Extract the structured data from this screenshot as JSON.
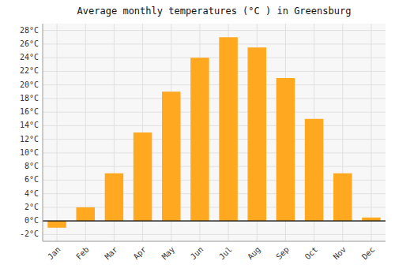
{
  "chart_data": {
    "type": "bar",
    "title": "Average monthly temperatures (°C ) in Greensburg",
    "categories": [
      "Jan",
      "Feb",
      "Mar",
      "Apr",
      "May",
      "Jun",
      "Jul",
      "Aug",
      "Sep",
      "Oct",
      "Nov",
      "Dec"
    ],
    "values": [
      -1,
      2,
      7,
      13,
      19,
      24,
      27,
      25.5,
      21,
      15,
      7,
      0.5
    ],
    "color": "#FFA820",
    "ylim": [
      -3,
      29
    ],
    "yticks": [
      {
        "value": -2,
        "label": "-2°C"
      },
      {
        "value": 0,
        "label": "0°C"
      },
      {
        "value": 2,
        "label": "2°C"
      },
      {
        "value": 4,
        "label": "4°C"
      },
      {
        "value": 6,
        "label": "6°C"
      },
      {
        "value": 8,
        "label": "8°C"
      },
      {
        "value": 10,
        "label": "10°C"
      },
      {
        "value": 12,
        "label": "12°C"
      },
      {
        "value": 14,
        "label": "14°C"
      },
      {
        "value": 16,
        "label": "16°C"
      },
      {
        "value": 18,
        "label": "18°C"
      },
      {
        "value": 20,
        "label": "20°C"
      },
      {
        "value": 22,
        "label": "22°C"
      },
      {
        "value": 24,
        "label": "24°C"
      },
      {
        "value": 26,
        "label": "26°C"
      },
      {
        "value": 28,
        "label": "28°C"
      }
    ],
    "grid": true
  }
}
